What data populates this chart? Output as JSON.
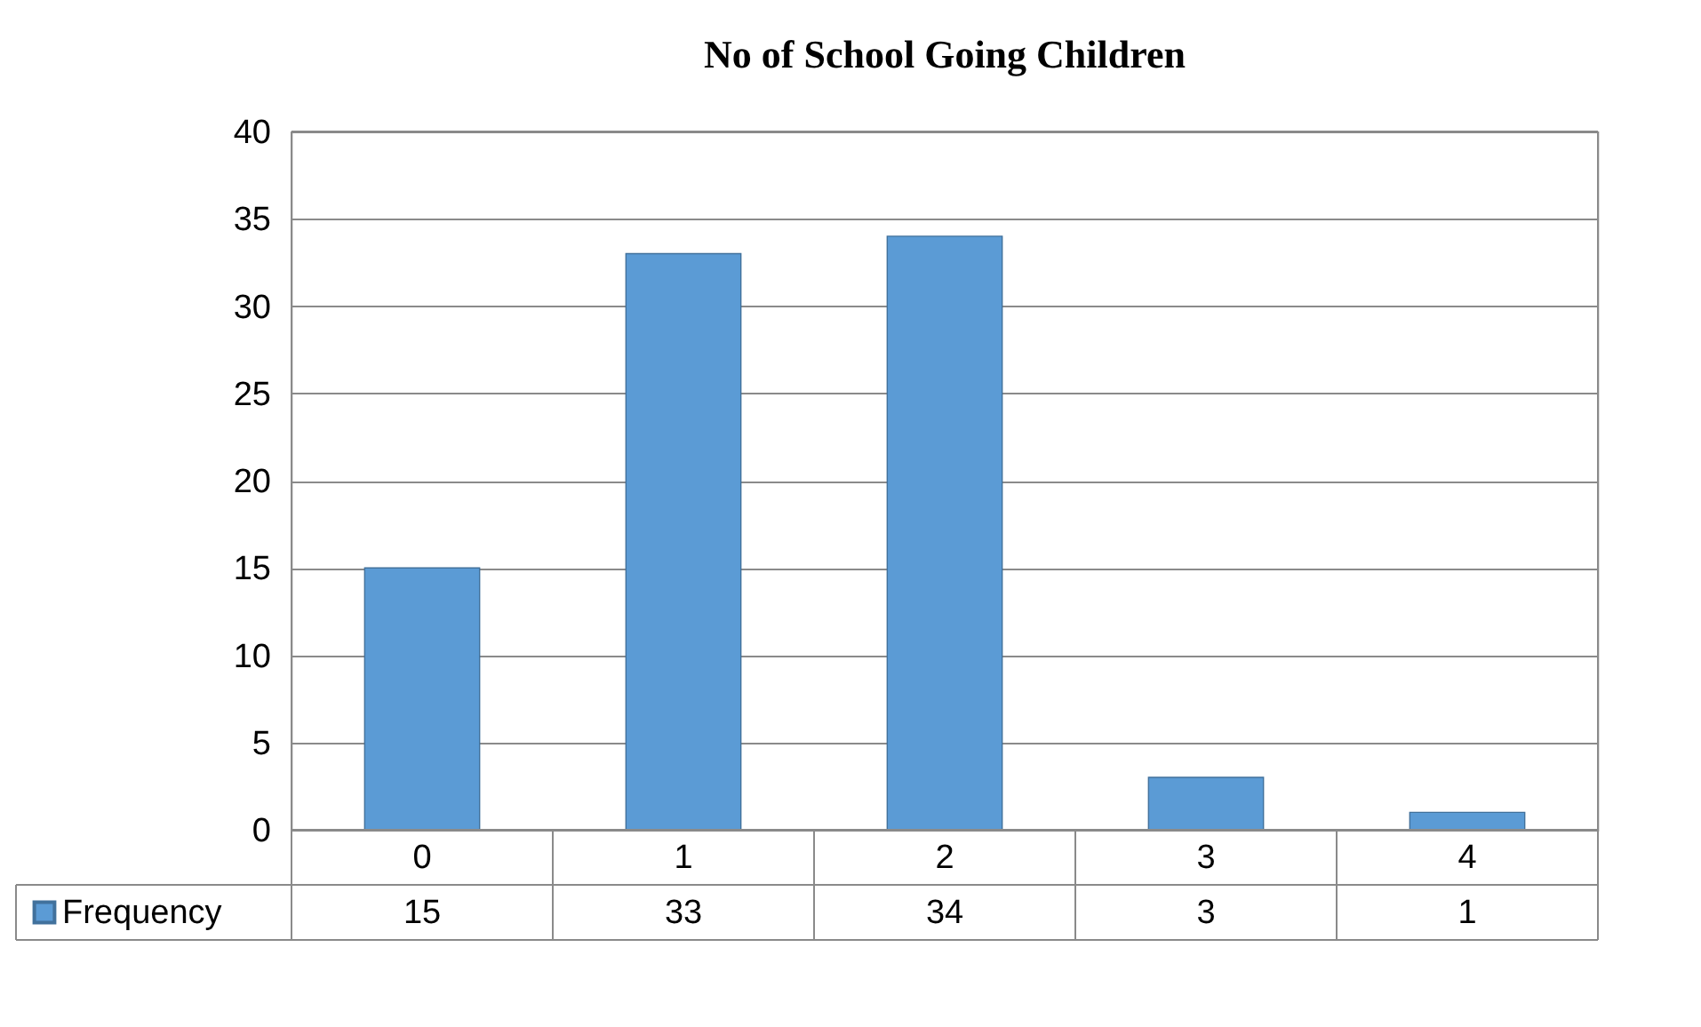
{
  "chart_data": {
    "type": "bar",
    "title": "No of School Going Children",
    "categories": [
      "0",
      "1",
      "2",
      "3",
      "4"
    ],
    "series": [
      {
        "name": "Frequency",
        "color": "#5b9bd5",
        "values": [
          15,
          33,
          34,
          3,
          1
        ]
      }
    ],
    "ylim": [
      0,
      40
    ],
    "yticks": [
      0,
      5,
      10,
      15,
      20,
      25,
      30,
      35,
      40
    ],
    "grid": "y",
    "data_labels": true,
    "legend": "bottom"
  }
}
